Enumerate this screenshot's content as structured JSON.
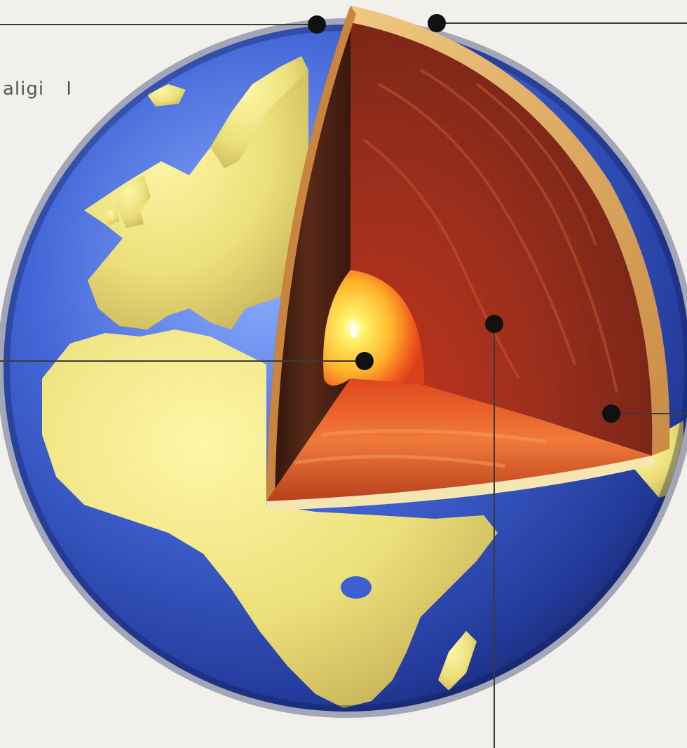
{
  "diagram": {
    "partial_label": "aligi",
    "partial_label_suffix": "I"
  },
  "colors": {
    "background": "#f1f0ec",
    "ocean": "#3e5fd0",
    "land": "#eee27a",
    "crust": "#e0b06a",
    "mantle": "#a5301e",
    "outer_core": "#d24a1c",
    "inner_core": "#ffd23a",
    "leader": "#3a3a3a",
    "dot": "#111111"
  }
}
